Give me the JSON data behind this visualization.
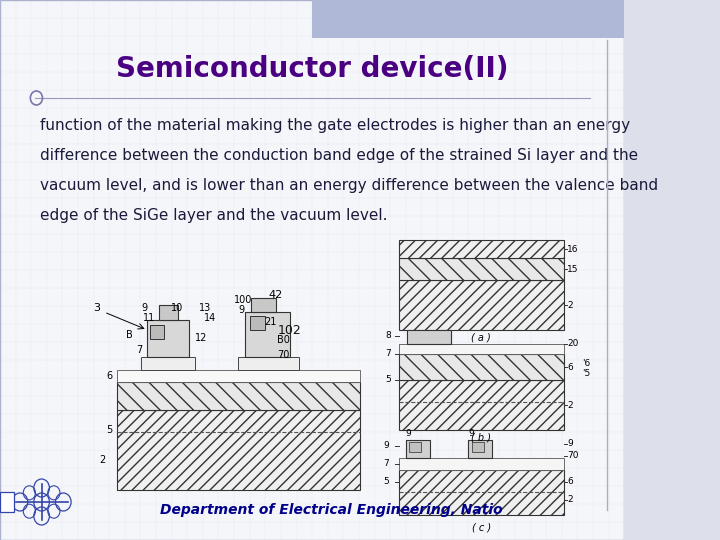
{
  "title": "Semiconductor device(II)",
  "title_color": "#4B0082",
  "title_fontsize": 20,
  "title_weight": "bold",
  "body_lines": [
    "function of the material making the gate electrodes is higher than an energy",
    "difference between the conduction band edge of the strained Si layer and the",
    "vacuum level, and is lower than an energy difference between the valence band",
    "edge of the SiGe layer and the vacuum level."
  ],
  "body_fontsize": 11,
  "body_color": "#1a1a3a",
  "footer_text": "Department of Electrical Engineering, Natio",
  "footer_color": "#00008B",
  "footer_fontsize": 10,
  "background_color": "#dde0ea",
  "slide_bg": "#f5f6fa",
  "grid_color": "#c5cce0",
  "title_bar_color": "#b0b8d8"
}
